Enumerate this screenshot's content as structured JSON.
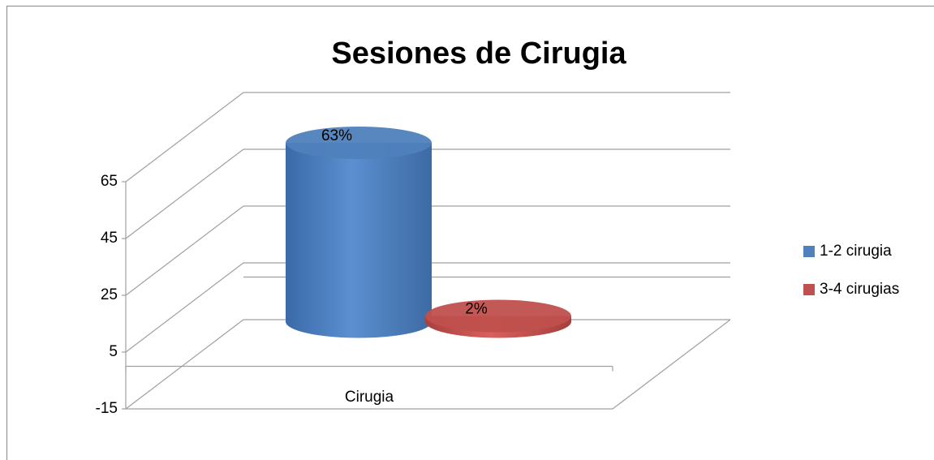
{
  "chart_data": {
    "type": "bar3d",
    "title": "Sesiones de Cirugia",
    "categories": [
      "Cirugia"
    ],
    "series": [
      {
        "name": "1-2 cirugia",
        "color": "#4f81bd",
        "values": [
          63
        ],
        "value_labels": [
          "63%"
        ]
      },
      {
        "name": "3-4 cirugias",
        "color": "#c0504d",
        "values": [
          2
        ],
        "value_labels": [
          "2%"
        ]
      }
    ],
    "ylim": [
      -15,
      65
    ],
    "yticks": [
      -15,
      5,
      25,
      45,
      65
    ],
    "grid": true,
    "legend": "right"
  }
}
